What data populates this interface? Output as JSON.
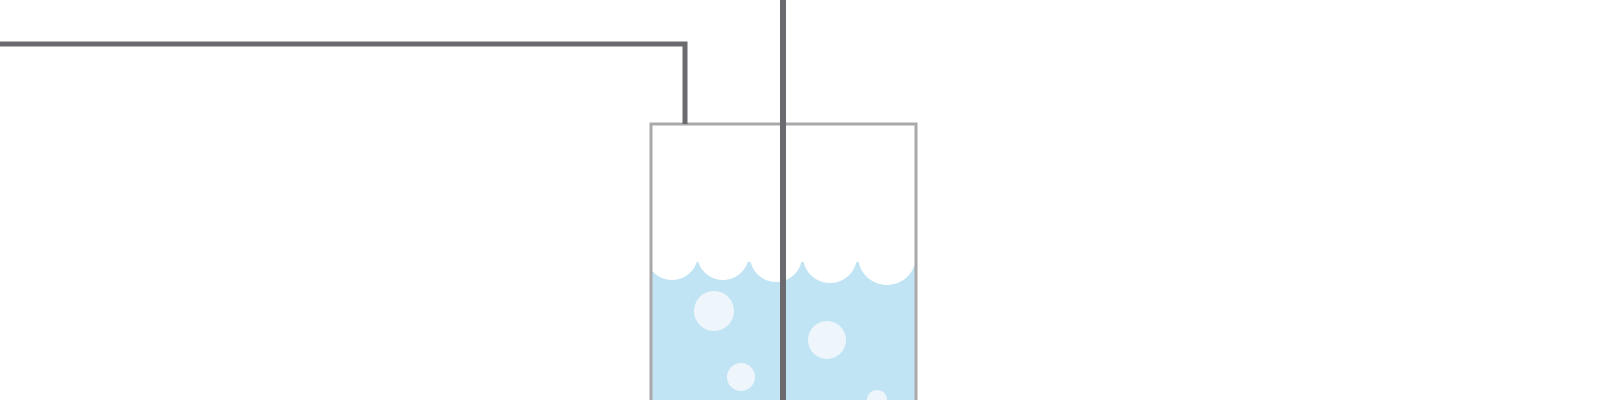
{
  "diagram": {
    "subject": "beaker-with-liquid-and-electrodes",
    "colors": {
      "background": "#ffffff",
      "wire": "#6b6a6f",
      "beaker_outline": "#a9a9ab",
      "liquid": "#c1e4f4",
      "bubble": "#eef6fc",
      "foam": "#ffffff"
    }
  }
}
